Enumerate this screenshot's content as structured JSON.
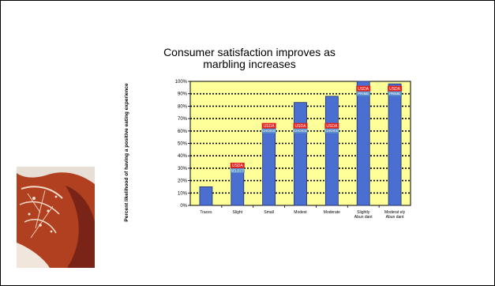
{
  "chart_data": {
    "type": "bar",
    "title": "Consumer satisfaction improves as marbling increases",
    "ylabel": "Percent likelihood of having a positive eating experience",
    "xlabel": "",
    "categories": [
      "Traces",
      "Slight",
      "Small",
      "Modest",
      "Moderate",
      "Slightly Abundant",
      "Moderately Abundant"
    ],
    "category_lines": [
      [
        "Traces"
      ],
      [
        "Slight"
      ],
      [
        "Small"
      ],
      [
        "Modest"
      ],
      [
        "Moderate"
      ],
      [
        "Slightly",
        "Abun dant"
      ],
      [
        "Moderat ely",
        "Abun dant"
      ]
    ],
    "values": [
      15,
      30,
      62,
      83,
      88,
      100,
      98
    ],
    "ylim": [
      0,
      100
    ],
    "yticks": [
      "0%",
      "10%",
      "20%",
      "30%",
      "40%",
      "50%",
      "60%",
      "70%",
      "80%",
      "90%",
      "100%"
    ],
    "grid": true,
    "legend": "none",
    "colors": {
      "bar": "#4a6fd1",
      "plot_bg": "#ffff99",
      "usda_red": "#e8201c",
      "grade_blue": "#5a8fc7"
    },
    "grade_badges": [
      {
        "category": "Slight",
        "top": "USDA",
        "bottom": "SELECT",
        "value": 30
      },
      {
        "category": "Small",
        "top": "USDA",
        "bottom": "CHOICE",
        "value": 62
      },
      {
        "category": "Modest",
        "top": "USDA",
        "bottom": "CHOICE",
        "value": 62
      },
      {
        "category": "Moderate",
        "top": "USDA",
        "bottom": "CHOICE",
        "value": 62
      },
      {
        "category": "Slightly Abundant",
        "top": "USDA",
        "bottom": "PRIME",
        "value": 92
      },
      {
        "category": "Moderately Abundant",
        "top": "USDA",
        "bottom": "PRIME",
        "value": 92
      }
    ]
  }
}
